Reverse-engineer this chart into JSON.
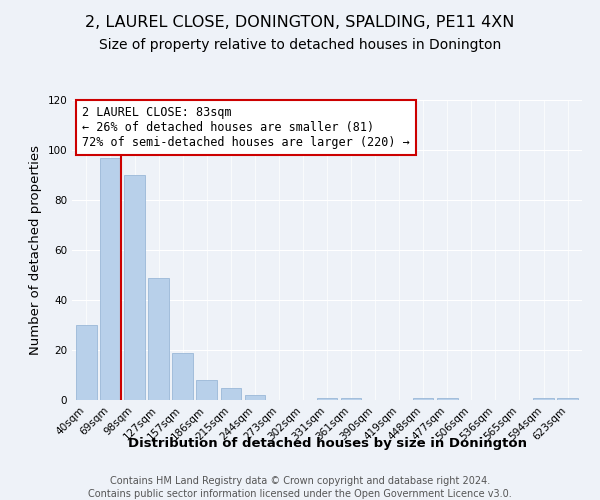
{
  "title": "2, LAUREL CLOSE, DONINGTON, SPALDING, PE11 4XN",
  "subtitle": "Size of property relative to detached houses in Donington",
  "xlabel": "Distribution of detached houses by size in Donington",
  "ylabel": "Number of detached properties",
  "categories": [
    "40sqm",
    "69sqm",
    "98sqm",
    "127sqm",
    "157sqm",
    "186sqm",
    "215sqm",
    "244sqm",
    "273sqm",
    "302sqm",
    "331sqm",
    "361sqm",
    "390sqm",
    "419sqm",
    "448sqm",
    "477sqm",
    "506sqm",
    "536sqm",
    "565sqm",
    "594sqm",
    "623sqm"
  ],
  "values": [
    30,
    97,
    90,
    49,
    19,
    8,
    5,
    2,
    0,
    0,
    1,
    1,
    0,
    0,
    1,
    1,
    0,
    0,
    0,
    1,
    1
  ],
  "bar_color": "#b8d0ea",
  "bar_edge_color": "#9ab8d8",
  "highlight_bar_index": 1,
  "highlight_color": "#cc0000",
  "annotation_line1": "2 LAUREL CLOSE: 83sqm",
  "annotation_line2": "← 26% of detached houses are smaller (81)",
  "annotation_line3": "72% of semi-detached houses are larger (220) →",
  "annotation_box_facecolor": "#ffffff",
  "annotation_box_edgecolor": "#cc0000",
  "ylim": [
    0,
    120
  ],
  "yticks": [
    0,
    20,
    40,
    60,
    80,
    100,
    120
  ],
  "footer1": "Contains HM Land Registry data © Crown copyright and database right 2024.",
  "footer2": "Contains public sector information licensed under the Open Government Licence v3.0.",
  "background_color": "#eef2f8",
  "title_fontsize": 11.5,
  "subtitle_fontsize": 10,
  "axis_label_fontsize": 9.5,
  "tick_fontsize": 7.5,
  "annotation_fontsize": 8.5,
  "footer_fontsize": 7
}
